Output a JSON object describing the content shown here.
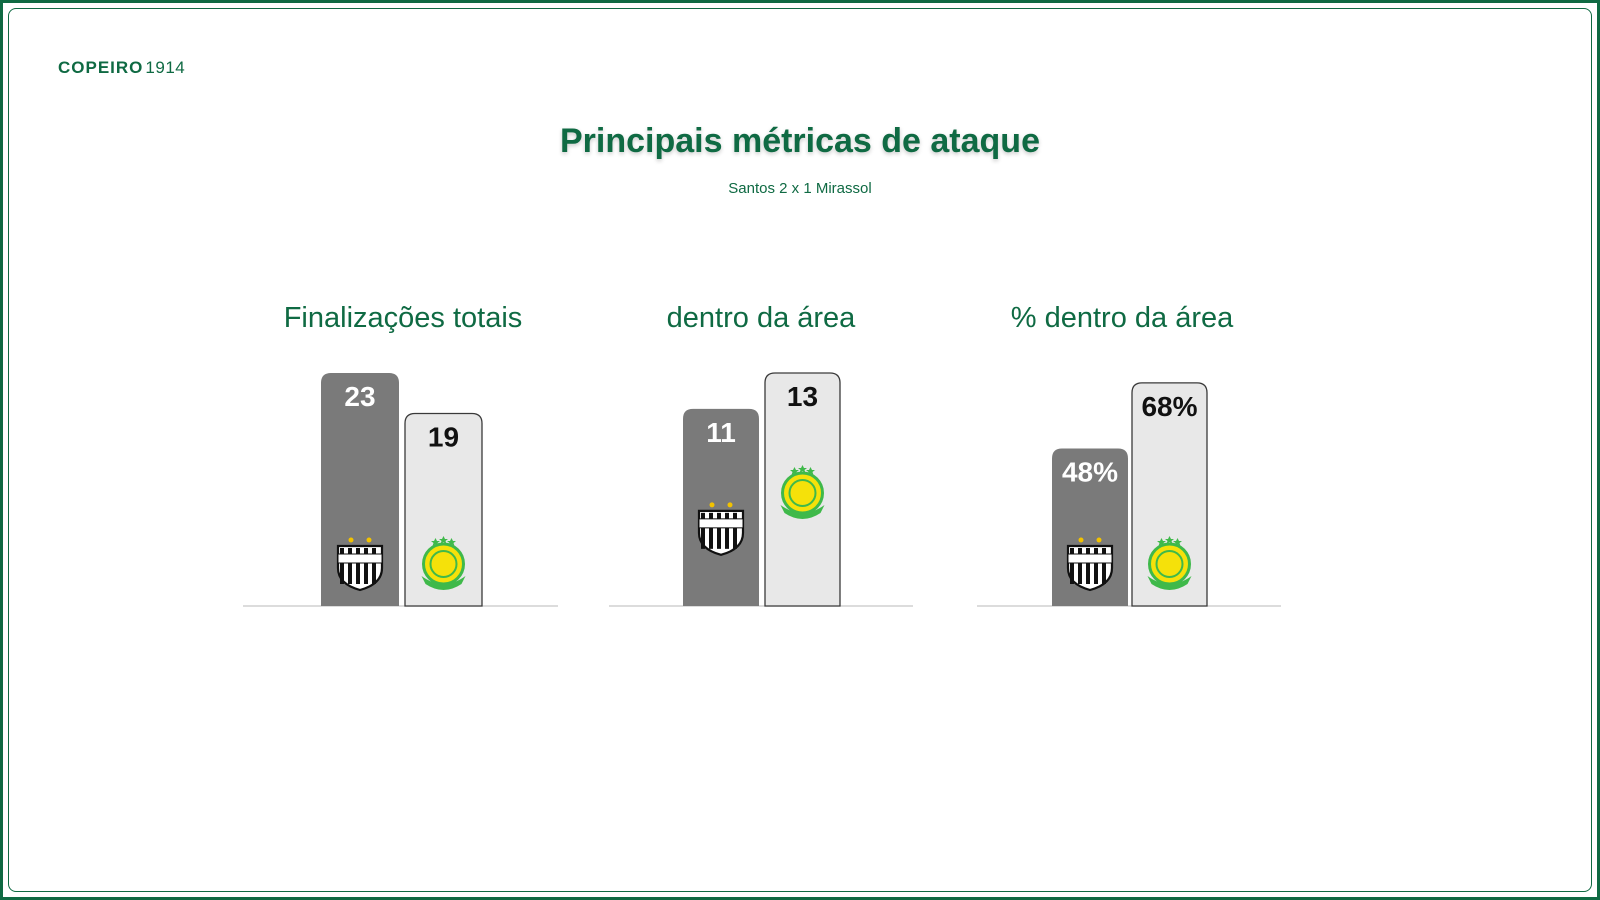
{
  "header": {
    "brand": "COPEIRO",
    "year": "1914",
    "title": "Principais métricas de ataque",
    "subtitle": "Santos 2 x 1 Mirassol"
  },
  "colors": {
    "brand_green": "#0f6a43",
    "santos_bar": "#7a7a7a",
    "mirassol_bar": "#e8e8e8",
    "mirassol_crest": "#3fb94a",
    "mirassol_crest_accent": "#f5e10a"
  },
  "teams": [
    "Santos",
    "Mirassol"
  ],
  "chart_data": [
    {
      "type": "bar",
      "title": "Finalizações totais",
      "categories": [
        "Santos",
        "Mirassol"
      ],
      "values": [
        23,
        19
      ],
      "labels": [
        "23",
        "19"
      ],
      "ylim": [
        0,
        23
      ]
    },
    {
      "type": "bar",
      "title": "dentro da área",
      "categories": [
        "Santos",
        "Mirassol"
      ],
      "values": [
        11,
        13
      ],
      "labels": [
        "11",
        "13"
      ],
      "ylim": [
        0,
        13
      ]
    },
    {
      "type": "bar",
      "title": "% dentro da área",
      "categories": [
        "Santos",
        "Mirassol"
      ],
      "values": [
        48,
        68
      ],
      "labels": [
        "48%",
        "68%"
      ],
      "ylim": [
        0,
        71
      ]
    }
  ]
}
